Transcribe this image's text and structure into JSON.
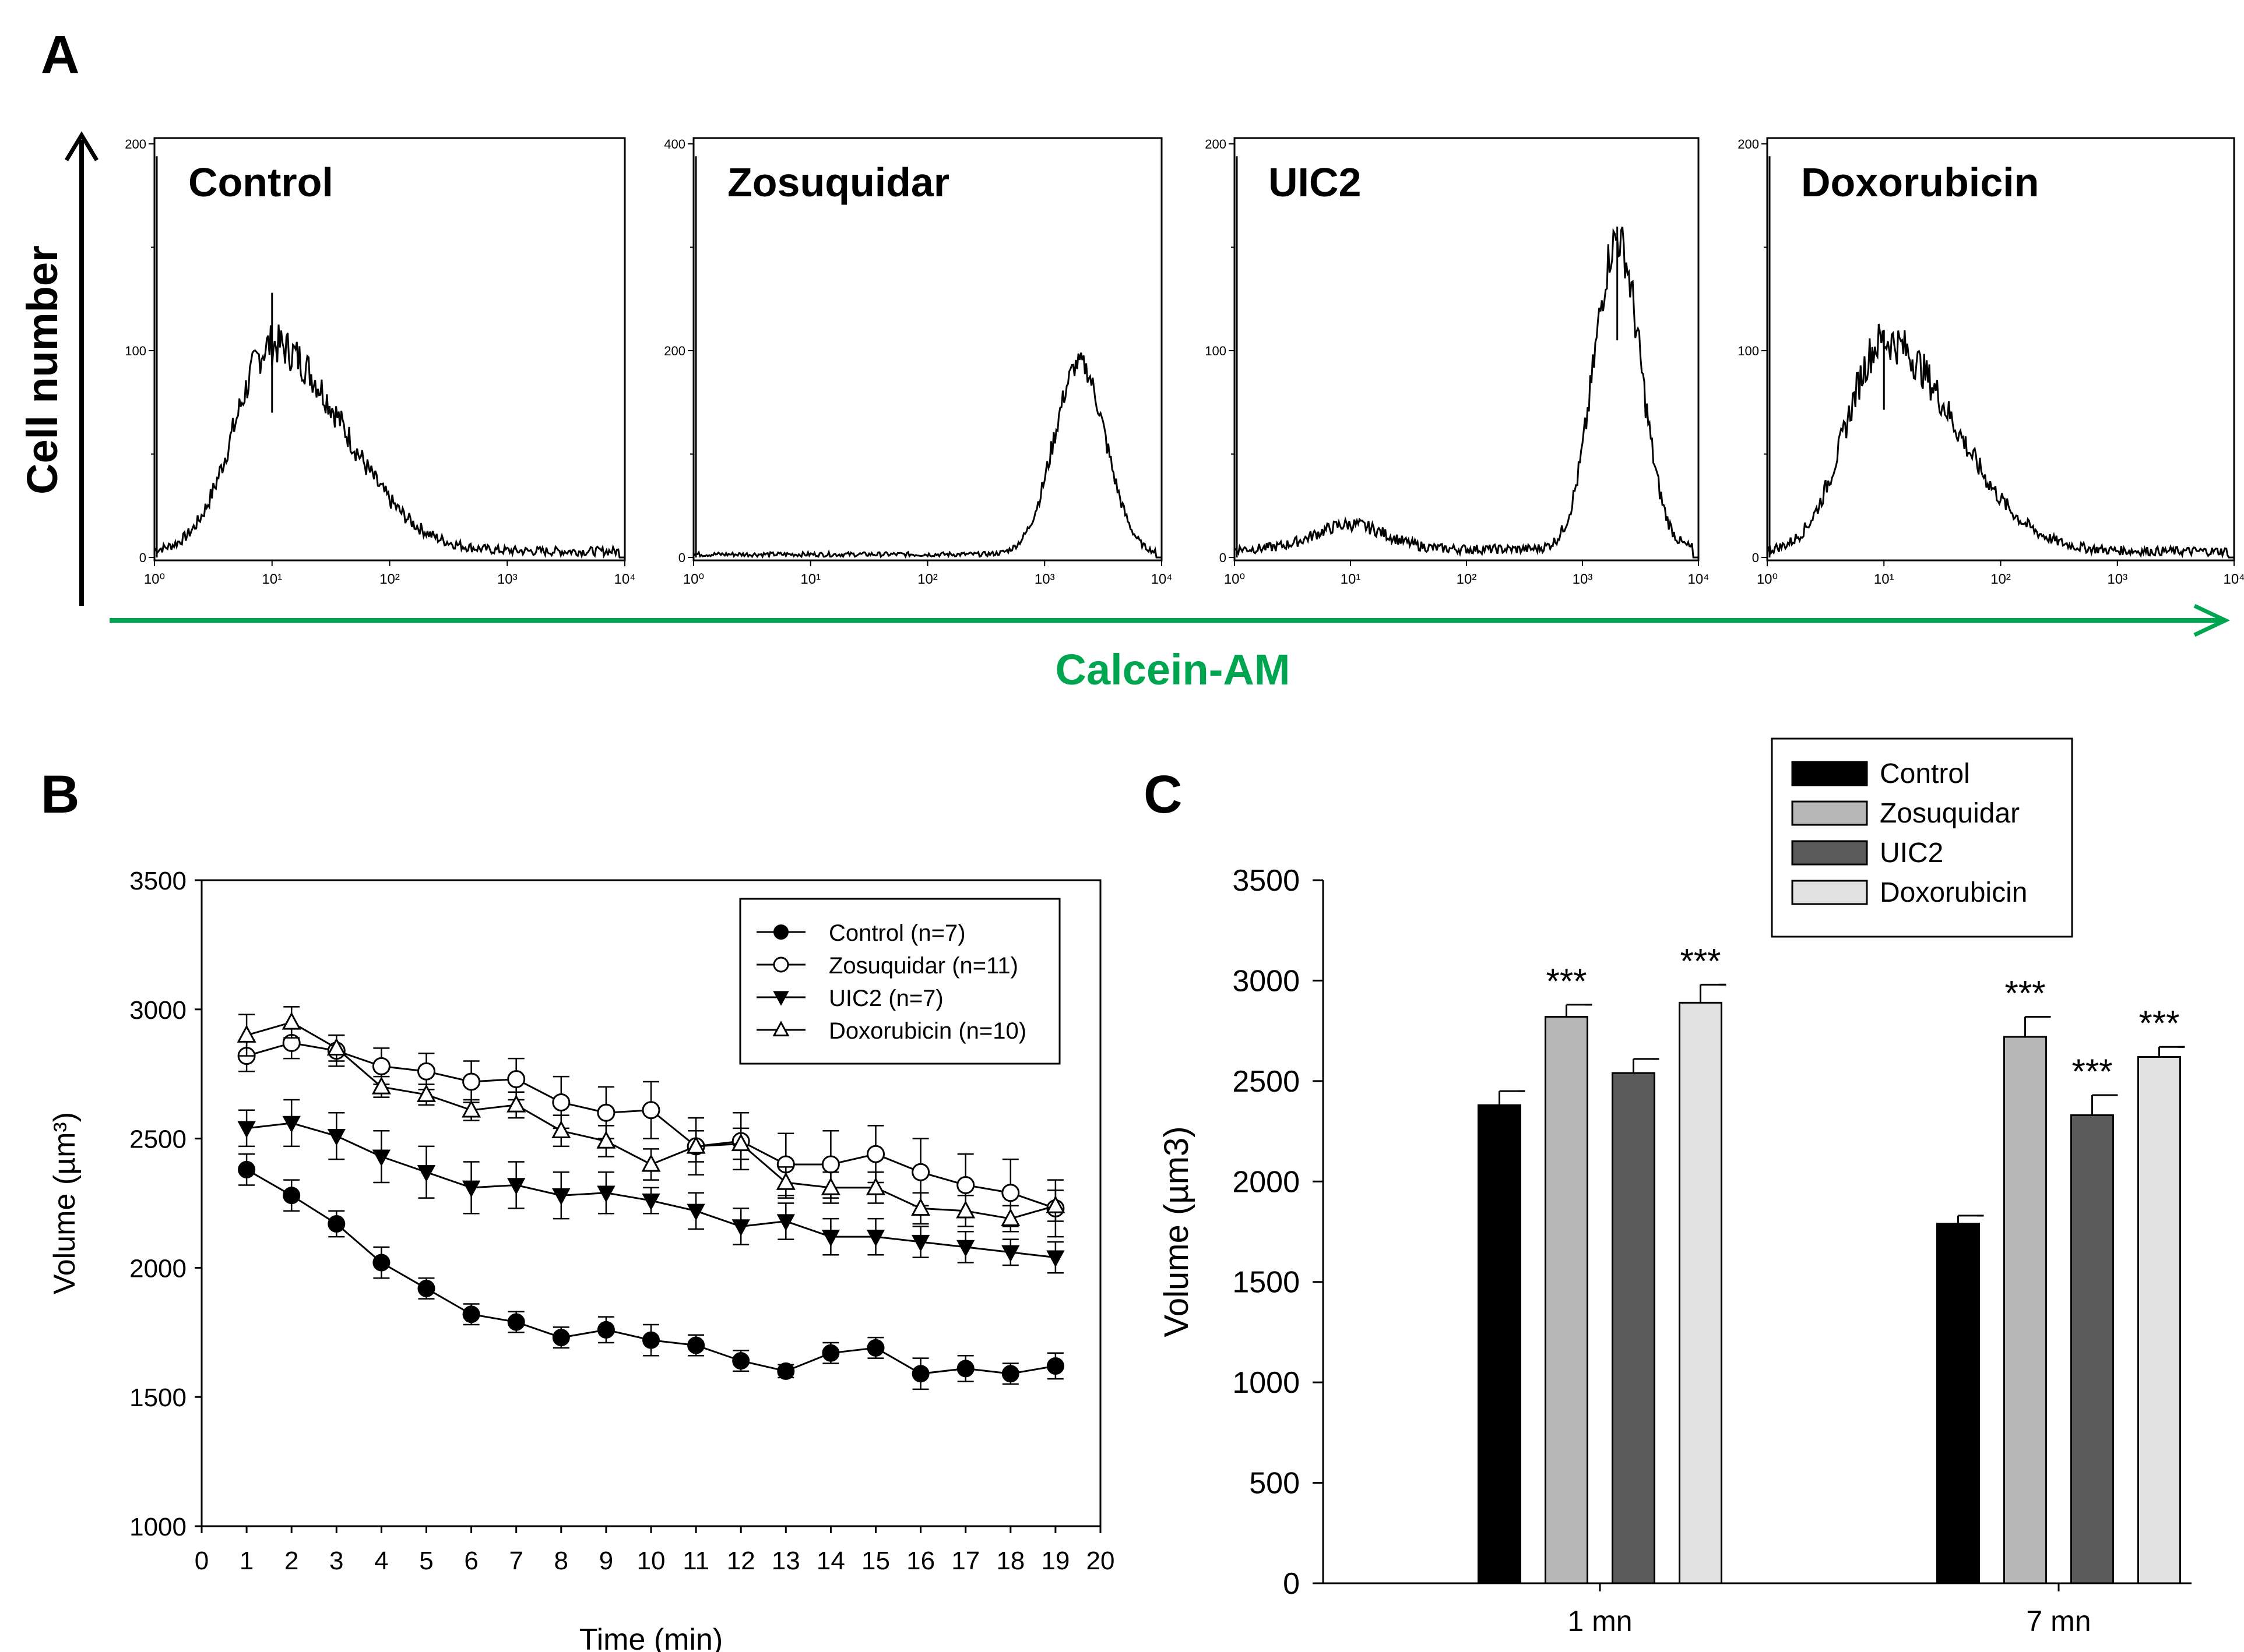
{
  "panel_a": {
    "letter": "A",
    "y_axis_label": "Cell number",
    "x_axis_label": "Calcein-AM",
    "x_ticks": [
      "10⁰",
      "10¹",
      "10²",
      "10³",
      "10⁴"
    ],
    "histograms": [
      {
        "title": "Control",
        "y_ticks": [
          "0",
          "100",
          "200"
        ],
        "y_max": 200,
        "peak_decade": 1.0,
        "peak_count": 100,
        "spike_count": 128
      },
      {
        "title": "Zosuquidar",
        "y_ticks": [
          "0",
          "200",
          "400"
        ],
        "y_max": 400,
        "peak_decade": 3.3,
        "peak_count": 185,
        "spike_count": 0
      },
      {
        "title": "UIC2",
        "y_ticks": [
          "0",
          "100",
          "200"
        ],
        "y_max": 200,
        "peak_decade": 3.3,
        "peak_count": 150,
        "spike_count": 160,
        "minor_peak_decade": 1.0,
        "minor_peak_count": 12
      },
      {
        "title": "Doxorubicin",
        "y_ticks": [
          "0",
          "100",
          "200"
        ],
        "y_max": 200,
        "peak_decade": 1.0,
        "peak_count": 102,
        "spike_count": 110
      }
    ]
  },
  "chart_data": [
    {
      "type": "line",
      "panel": "B",
      "title": "",
      "xlabel": "Time (min)",
      "ylabel": "Volume (µm³)",
      "xlim": [
        0,
        20
      ],
      "ylim": [
        1000,
        3500
      ],
      "x_ticks": [
        "0",
        "1",
        "2",
        "3",
        "4",
        "5",
        "6",
        "7",
        "8",
        "9",
        "10",
        "11",
        "12",
        "13",
        "14",
        "15",
        "16",
        "17",
        "18",
        "19",
        "20"
      ],
      "y_ticks": [
        "1000",
        "1500",
        "2000",
        "2500",
        "3000",
        "3500"
      ],
      "x": [
        1,
        2,
        3,
        4,
        5,
        6,
        7,
        8,
        9,
        10,
        11,
        12,
        13,
        14,
        15,
        16,
        17,
        18,
        19
      ],
      "series": [
        {
          "name": "Control (n=7)",
          "marker": "filled-circle",
          "values": [
            2380,
            2280,
            2170,
            2020,
            1920,
            1820,
            1790,
            1730,
            1760,
            1720,
            1700,
            1640,
            1600,
            1670,
            1690,
            1590,
            1610,
            1590,
            1620
          ],
          "errors": [
            60,
            60,
            50,
            60,
            40,
            40,
            40,
            40,
            50,
            60,
            40,
            40,
            25,
            40,
            40,
            60,
            50,
            40,
            50
          ]
        },
        {
          "name": "Zosuquidar (n=11)",
          "marker": "open-circle",
          "values": [
            2820,
            2870,
            2840,
            2780,
            2760,
            2720,
            2730,
            2640,
            2600,
            2610,
            2470,
            2490,
            2400,
            2400,
            2440,
            2370,
            2320,
            2290,
            2230
          ],
          "errors": [
            60,
            60,
            60,
            70,
            70,
            80,
            80,
            100,
            100,
            110,
            110,
            110,
            120,
            130,
            110,
            130,
            120,
            130,
            110
          ]
        },
        {
          "name": "UIC2 (n=7)",
          "marker": "filled-triangle-down",
          "values": [
            2540,
            2560,
            2510,
            2430,
            2370,
            2310,
            2320,
            2280,
            2290,
            2260,
            2220,
            2160,
            2180,
            2120,
            2120,
            2100,
            2080,
            2060,
            2040
          ],
          "errors": [
            70,
            90,
            90,
            100,
            100,
            100,
            90,
            90,
            80,
            50,
            70,
            70,
            70,
            70,
            70,
            60,
            60,
            50,
            60
          ]
        },
        {
          "name": "Doxorubicin (n=10)",
          "marker": "open-triangle-up",
          "values": [
            2900,
            2950,
            2850,
            2700,
            2670,
            2610,
            2630,
            2530,
            2490,
            2400,
            2470,
            2480,
            2330,
            2310,
            2310,
            2230,
            2220,
            2190,
            2240
          ],
          "errors": [
            80,
            60,
            50,
            40,
            40,
            40,
            50,
            60,
            60,
            60,
            60,
            60,
            60,
            60,
            60,
            60,
            60,
            50,
            60
          ]
        }
      ],
      "legend_position": "top-right"
    },
    {
      "type": "bar",
      "panel": "C",
      "title": "",
      "xlabel": "",
      "ylabel": "Volume (µm3)",
      "ylim": [
        0,
        3500
      ],
      "y_ticks": [
        "0",
        "500",
        "1000",
        "1500",
        "2000",
        "2500",
        "3000",
        "3500"
      ],
      "categories": [
        "1 mn",
        "7 mn"
      ],
      "series": [
        {
          "name": "Control",
          "color": "#000000",
          "values": [
            2380,
            1790
          ],
          "errors": [
            70,
            40
          ],
          "significance": [
            "",
            ""
          ]
        },
        {
          "name": "Zosuquidar",
          "color": "#b8b8b8",
          "values": [
            2820,
            2720
          ],
          "errors": [
            60,
            100
          ],
          "significance": [
            "***",
            "***"
          ]
        },
        {
          "name": "UIC2",
          "color": "#5a5a5a",
          "values": [
            2540,
            2330
          ],
          "errors": [
            70,
            100
          ],
          "significance": [
            "",
            "***"
          ]
        },
        {
          "name": "Doxorubicin",
          "color": "#e2e2e2",
          "values": [
            2890,
            2620
          ],
          "errors": [
            90,
            50
          ],
          "significance": [
            "***",
            "***"
          ]
        }
      ],
      "legend_position": "top-right"
    }
  ],
  "colors": {
    "axis": "#000000",
    "green_axis": "#00a550"
  }
}
